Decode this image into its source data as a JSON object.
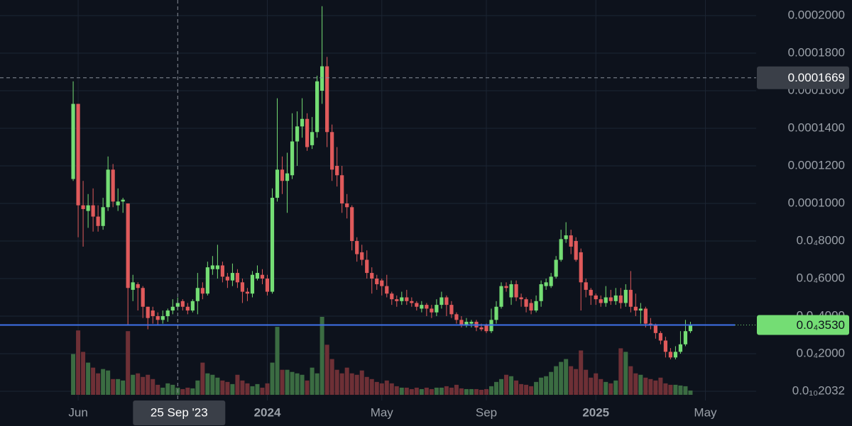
{
  "chart_data": {
    "type": "candlestick",
    "open": [
      0.000113,
      0.000153,
      9.9e-05,
      9.6e-05,
      9.9e-05,
      9.3e-05,
      8.8e-05,
      9.8e-05,
      0.000118,
      9.9e-05,
      0.000101,
      0.0001,
      5.4e-05,
      5.7e-05,
      5.5e-05,
      4.5e-05,
      4.3e-05,
      4e-05,
      3.8e-05,
      4e-05,
      4.3e-05,
      4.5e-05,
      4.8e-05,
      4.5e-05,
      4.3e-05,
      4.8e-05,
      5.5e-05,
      5.2e-05,
      6.5e-05,
      6.5e-05,
      6.7e-05,
      6.1e-05,
      5.9e-05,
      6.3e-05,
      5.8e-05,
      5.3e-05,
      5.2e-05,
      6e-05,
      6.2e-05,
      6e-05,
      5.3e-05,
      0.000103,
      0.000118,
      0.000112,
      0.000115,
      0.000133,
      0.000141,
      0.000145,
      0.000131,
      0.000138,
      0.00016,
      0.000173,
      0.000138,
      0.00012,
      0.000115,
      0.0001,
      9.8e-05,
      8e-05,
      7.4e-05,
      7e-05,
      6.3e-05,
      6e-05,
      5.9e-05,
      5.6e-05,
      5.2e-05,
      4.9e-05,
      4.8e-05,
      5e-05,
      4.8e-05,
      4.7e-05,
      4.4e-05,
      4.6e-05,
      4.4e-05,
      4.2e-05,
      4.6e-05,
      5e-05,
      4.6e-05,
      4.1e-05,
      3.8e-05,
      3.5e-05,
      3.6e-05,
      3.7e-05,
      3.4e-05,
      3.5e-05,
      3.2e-05,
      3.8e-05,
      4.5e-05,
      5.6e-05,
      5e-05,
      5.7e-05,
      5e-05,
      4.9e-05,
      4.7e-05,
      4.3e-05,
      4.8e-05,
      5.6e-05,
      5.6e-05,
      6.1e-05,
      7e-05,
      8.1e-05,
      8.3e-05,
      8e-05,
      7.4e-05,
      5.8e-05,
      5.4e-05,
      5.1e-05,
      4.9e-05,
      4.7e-05,
      5e-05,
      4.8e-05,
      5.1e-05,
      4.7e-05,
      5.4e-05,
      4.5e-05,
      4.3e-05,
      4.4e-05,
      3.6e-05,
      3.5e-05,
      3.1e-05,
      2.7e-05,
      2.1e-05,
      1.8e-05,
      2.1e-05,
      2.5e-05,
      3.2e-05
    ],
    "high": [
      0.000165,
      0.000153,
      0.000112,
      0.000105,
      0.000108,
      9.9e-05,
      0.000103,
      0.000125,
      0.000121,
      0.000108,
      0.000103,
      0.0001,
      6.2e-05,
      5.8e-05,
      5.6e-05,
      4.5e-05,
      4.5e-05,
      4.2e-05,
      4.3e-05,
      4.4e-05,
      4.9e-05,
      5e-05,
      4.9e-05,
      4.7e-05,
      4.9e-05,
      6.3e-05,
      5.8e-05,
      6.9e-05,
      7.2e-05,
      7.8e-05,
      6.9e-05,
      6.3e-05,
      6.8e-05,
      6.5e-05,
      6e-05,
      5.5e-05,
      6.4e-05,
      6.7e-05,
      6.5e-05,
      6.2e-05,
      0.000108,
      0.000156,
      0.000125,
      0.000127,
      0.000148,
      0.000149,
      0.000156,
      0.000148,
      0.000146,
      0.000168,
      0.000205,
      0.000178,
      0.000142,
      0.00013,
      0.00012,
      0.000105,
      9.9e-05,
      8.2e-05,
      7.8e-05,
      7.5e-05,
      6.6e-05,
      6.2e-05,
      6e-05,
      6.2e-05,
      5.3e-05,
      5.1e-05,
      5.3e-05,
      5.4e-05,
      5e-05,
      4.8e-05,
      4.8e-05,
      4.7e-05,
      4.6e-05,
      4.9e-05,
      5.3e-05,
      5.1e-05,
      4.8e-05,
      4.2e-05,
      4e-05,
      3.9e-05,
      3.8e-05,
      3.8e-05,
      3.6e-05,
      3.6e-05,
      4.4e-05,
      4.8e-05,
      5.8e-05,
      5.8e-05,
      5.9e-05,
      5.9e-05,
      5.2e-05,
      5e-05,
      4.9e-05,
      5.1e-05,
      5.9e-05,
      6e-05,
      6.3e-05,
      7.2e-05,
      8.6e-05,
      9e-05,
      8.6e-05,
      8.2e-05,
      7.6e-05,
      6e-05,
      5.5e-05,
      5.2e-05,
      5.1e-05,
      5.6e-05,
      5.4e-05,
      5.5e-05,
      5.5e-05,
      5.7e-05,
      6.4e-05,
      5.2e-05,
      4.7e-05,
      4.5e-05,
      3.9e-05,
      3.6e-05,
      3.2e-05,
      2.9e-05,
      2.3e-05,
      2.4e-05,
      3.2e-05,
      3.8e-05,
      3.7e-05
    ],
    "low": [
      0.000112,
      8.2e-05,
      7.7e-05,
      8.7e-05,
      8.5e-05,
      8.5e-05,
      8.6e-05,
      9.6e-05,
      9.8e-05,
      9.6e-05,
      9.5e-05,
      3.5e-05,
      4.8e-05,
      4.3e-05,
      3.9e-05,
      3.3e-05,
      3.6e-05,
      3.5e-05,
      3.6e-05,
      3.7e-05,
      4.1e-05,
      4.3e-05,
      4.3e-05,
      4.1e-05,
      4.2e-05,
      4.1e-05,
      4.9e-05,
      5.1e-05,
      6.2e-05,
      6e-05,
      5.8e-05,
      5.5e-05,
      5.6e-05,
      5.5e-05,
      4.7e-05,
      4.8e-05,
      5e-05,
      5.9e-05,
      5.7e-05,
      5.1e-05,
      5.2e-05,
      0.000101,
      0.000105,
      9.5e-05,
      0.000113,
      0.00012,
      0.000135,
      0.000128,
      0.000129,
      0.000135,
      0.000153,
      0.00013,
      0.000112,
      0.000109,
      9.5e-05,
      9.2e-05,
      7.5e-05,
      6.9e-05,
      6.7e-05,
      6e-05,
      5.2e-05,
      5.4e-05,
      5.1e-05,
      5e-05,
      4.6e-05,
      4.5e-05,
      4.6e-05,
      4.6e-05,
      4.5e-05,
      4.3e-05,
      4.2e-05,
      4e-05,
      3.9e-05,
      4e-05,
      4.4e-05,
      4e-05,
      3.9e-05,
      3.6e-05,
      3.4e-05,
      3.4e-05,
      3.4e-05,
      3.2e-05,
      3.2e-05,
      3.1e-05,
      3.1e-05,
      3.6e-05,
      4.4e-05,
      5.3e-05,
      4.6e-05,
      4.8e-05,
      4.5e-05,
      4.2e-05,
      4.1e-05,
      4.2e-05,
      4.5e-05,
      5.4e-05,
      5.5e-05,
      6e-05,
      6.9e-05,
      7.9e-05,
      7.3e-05,
      6.9e-05,
      4.3e-05,
      5e-05,
      4.6e-05,
      4.6e-05,
      4.5e-05,
      4.5e-05,
      4.6e-05,
      4.6e-05,
      4.4e-05,
      4.5e-05,
      4.2e-05,
      4e-05,
      3.6e-05,
      3.4e-05,
      3.3e-05,
      2.8e-05,
      2.5e-05,
      1.8e-05,
      1.7e-05,
      1.7e-05,
      2e-05,
      2.4e-05,
      3.1e-05
    ],
    "close": [
      0.000153,
      9.9e-05,
      9.7e-05,
      9.9e-05,
      9.3e-05,
      8.8e-05,
      9.8e-05,
      0.000118,
      0.000101,
      0.000101,
      0.000102,
      5.5e-05,
      5.8e-05,
      5.5e-05,
      4.5e-05,
      3.9e-05,
      4e-05,
      3.8e-05,
      4e-05,
      4.3e-05,
      4.5e-05,
      4.7e-05,
      4.5e-05,
      4.3e-05,
      4.8e-05,
      5.5e-05,
      5.2e-05,
      6.6e-05,
      6.7e-05,
      6.7e-05,
      6.1e-05,
      5.9e-05,
      6.3e-05,
      5.8e-05,
      5.3e-05,
      5.2e-05,
      6.2e-05,
      6.3e-05,
      6e-05,
      5.3e-05,
      0.000103,
      0.000118,
      0.000112,
      0.000116,
      0.000133,
      0.000141,
      0.000145,
      0.00013,
      0.000138,
      0.000165,
      0.000173,
      0.000138,
      0.000118,
      0.000115,
      0.0001,
      9.8e-05,
      8e-05,
      7.3e-05,
      7e-05,
      6.3e-05,
      6e-05,
      5.7e-05,
      5.6e-05,
      5.2e-05,
      4.9e-05,
      4.8e-05,
      5e-05,
      4.8e-05,
      4.7e-05,
      4.5e-05,
      4.6e-05,
      4.4e-05,
      4.2e-05,
      4.6e-05,
      5e-05,
      4.6e-05,
      4.1e-05,
      3.8e-05,
      3.5e-05,
      3.7e-05,
      3.7e-05,
      3.4e-05,
      3.3e-05,
      3.2e-05,
      3.8e-05,
      4.5e-05,
      5.6e-05,
      5.5e-05,
      5.7e-05,
      5e-05,
      4.9e-05,
      4.5e-05,
      4.3e-05,
      4.8e-05,
      5.7e-05,
      5.8e-05,
      6.1e-05,
      7e-05,
      8.1e-05,
      8.3e-05,
      7.7e-05,
      7e-05,
      5.8e-05,
      5.4e-05,
      5.1e-05,
      4.9e-05,
      4.7e-05,
      5e-05,
      4.8e-05,
      5.1e-05,
      4.7e-05,
      5.4e-05,
      4.5e-05,
      4.3e-05,
      4.4e-05,
      3.6e-05,
      3.5e-05,
      3.1e-05,
      2.7e-05,
      2.1e-05,
      1.8e-05,
      2.1e-05,
      2.5e-05,
      3.2e-05,
      3.53e-05
    ],
    "volume": [
      57,
      90,
      60,
      45,
      38,
      30,
      36,
      34,
      22,
      22,
      20,
      89,
      28,
      30,
      25,
      28,
      22,
      14,
      10,
      16,
      14,
      10,
      8,
      10,
      9,
      20,
      45,
      30,
      28,
      24,
      20,
      18,
      15,
      28,
      20,
      16,
      12,
      15,
      10,
      16,
      45,
      95,
      35,
      35,
      32,
      30,
      28,
      20,
      38,
      30,
      109,
      70,
      50,
      35,
      30,
      38,
      30,
      28,
      34,
      25,
      22,
      18,
      16,
      20,
      16,
      12,
      10,
      10,
      8,
      10,
      8,
      10,
      8,
      10,
      10,
      12,
      10,
      14,
      9,
      8,
      8,
      8,
      7,
      8,
      12,
      18,
      22,
      28,
      26,
      20,
      15,
      14,
      12,
      18,
      24,
      26,
      32,
      40,
      46,
      50,
      40,
      36,
      62,
      35,
      24,
      30,
      22,
      18,
      16,
      20,
      65,
      60,
      40,
      30,
      28,
      24,
      22,
      20,
      24,
      16,
      14,
      14,
      13,
      12,
      6
    ],
    "up_color": "#74dd74",
    "down_color": "#e05a5b",
    "volume_up_color": "#3b6c42",
    "volume_down_color": "#6e3036",
    "ylim": [
      -4.9e-06,
      0.0002083
    ],
    "yticks": [
      {
        "value": 0.0002,
        "label": "0.0002000"
      },
      {
        "value": 0.00018,
        "label": "0.0001800"
      },
      {
        "value": 0.00016,
        "label": "0.0001600"
      },
      {
        "value": 0.00014,
        "label": "0.0001400"
      },
      {
        "value": 0.00012,
        "label": "0.0001200"
      },
      {
        "value": 0.0001,
        "label": "0.0001000"
      },
      {
        "value": 8e-05,
        "label": "0.0₄8000"
      },
      {
        "value": 6e-05,
        "label": "0.0₄6000"
      },
      {
        "value": 4e-05,
        "label": "0.0₄4000"
      },
      {
        "value": 2e-05,
        "label": "0.0₄2000"
      },
      {
        "value": 2.032e-11,
        "label": "0.0₁₀2032"
      }
    ],
    "xlim": [
      -14.7,
      137.2
    ],
    "xticks": [
      {
        "value": 1,
        "label": "Jun"
      },
      {
        "value": 39,
        "label": "2024"
      },
      {
        "value": 62,
        "label": "May"
      },
      {
        "value": 83,
        "label": "Sep"
      },
      {
        "value": 105,
        "label": "2025"
      },
      {
        "value": 127,
        "label": "May"
      }
    ],
    "grid": true,
    "crosshair": {
      "x": 21,
      "x_label": "25 Sep '23",
      "y": 0.0001669,
      "y_label": "0.0001669"
    },
    "last_price": {
      "value": 3.53e-05,
      "label": "0.0₄3530"
    }
  }
}
